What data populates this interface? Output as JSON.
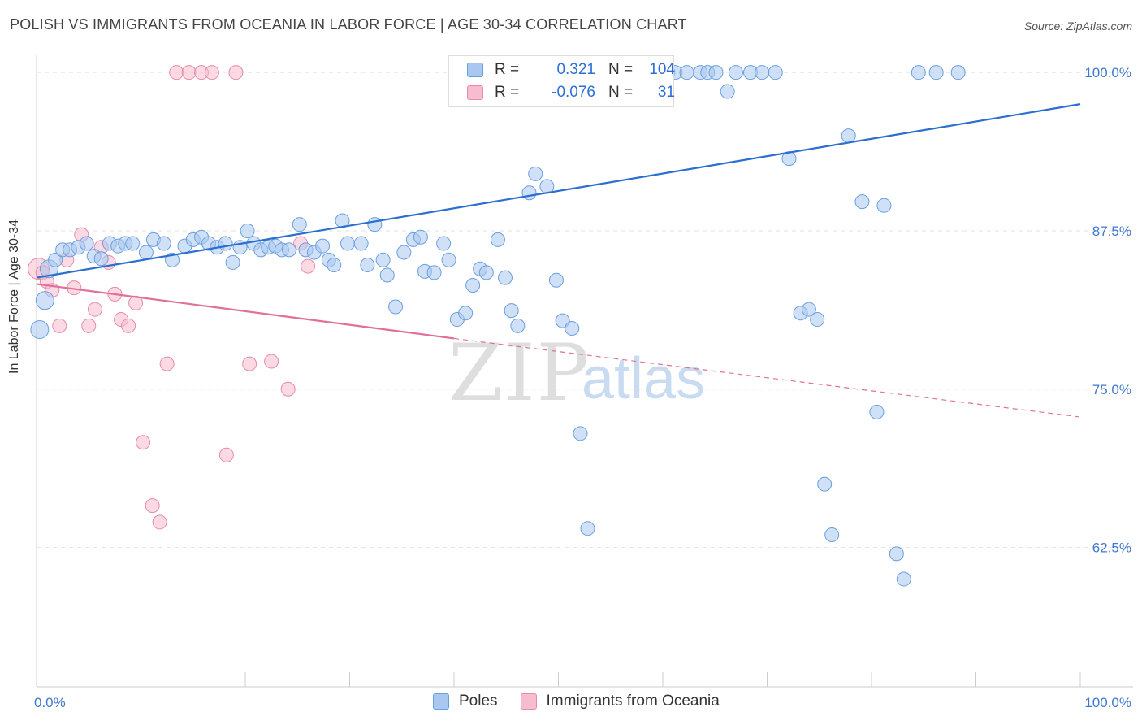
{
  "title": "POLISH VS IMMIGRANTS FROM OCEANIA IN LABOR FORCE | AGE 30-34 CORRELATION CHART",
  "source": "Source: ZipAtlas.com",
  "watermark": {
    "zip": "ZIP",
    "atlas": "atlas"
  },
  "legend": {
    "r_label": "R =",
    "n_label": "N =",
    "rows": [
      {
        "r": "0.321",
        "n": "104"
      },
      {
        "r": "-0.076",
        "n": "31"
      }
    ]
  },
  "colors": {
    "poles_fill": "#a9c8f0",
    "poles_stroke": "#6a9fe0",
    "poles_line": "#2a6fd0",
    "oceania_fill": "#f7bccd",
    "oceania_stroke": "#e88aa8",
    "oceania_line": "#e0709a",
    "axis_text": "#3f78d0"
  },
  "chart_data": {
    "type": "scatter",
    "title": "POLISH VS IMMIGRANTS FROM OCEANIA IN LABOR FORCE | AGE 30-34 CORRELATION CHART",
    "xlabel": "",
    "ylabel": "In Labor Force | Age 30-34",
    "xlim": [
      0,
      100
    ],
    "ylim": [
      51.5,
      102
    ],
    "x_tick_labels": [
      "0.0%",
      "100.0%"
    ],
    "y_ticks": [
      62.5,
      75.0,
      87.5,
      100.0
    ],
    "y_tick_labels": [
      "62.5%",
      "75.0%",
      "87.5%",
      "100.0%"
    ],
    "grid": true,
    "legend_position": "bottom",
    "series": [
      {
        "name": "Poles",
        "r": 0.321,
        "n": 104,
        "trend": {
          "x0": 0,
          "y0": 83.8,
          "x1": 100,
          "y1": 97.5
        },
        "points": [
          [
            0.3,
            79.7
          ],
          [
            0.8,
            82.0
          ],
          [
            1.2,
            84.5
          ],
          [
            1.8,
            85.2
          ],
          [
            2.5,
            86.0
          ],
          [
            3.2,
            86.0
          ],
          [
            4.0,
            86.2
          ],
          [
            4.8,
            86.5
          ],
          [
            5.5,
            85.5
          ],
          [
            6.2,
            85.3
          ],
          [
            7.0,
            86.5
          ],
          [
            7.8,
            86.3
          ],
          [
            8.5,
            86.5
          ],
          [
            9.2,
            86.5
          ],
          [
            10.5,
            85.8
          ],
          [
            11.2,
            86.8
          ],
          [
            12.2,
            86.5
          ],
          [
            13.0,
            85.2
          ],
          [
            14.2,
            86.3
          ],
          [
            15.0,
            86.8
          ],
          [
            15.8,
            87.0
          ],
          [
            16.5,
            86.5
          ],
          [
            17.3,
            86.2
          ],
          [
            18.1,
            86.5
          ],
          [
            18.8,
            85.0
          ],
          [
            19.5,
            86.2
          ],
          [
            20.2,
            87.5
          ],
          [
            20.8,
            86.5
          ],
          [
            21.5,
            86.0
          ],
          [
            22.2,
            86.2
          ],
          [
            22.9,
            86.3
          ],
          [
            23.5,
            86.0
          ],
          [
            24.2,
            86.0
          ],
          [
            25.2,
            88.0
          ],
          [
            25.8,
            86.0
          ],
          [
            26.6,
            85.8
          ],
          [
            27.4,
            86.3
          ],
          [
            28.0,
            85.2
          ],
          [
            28.5,
            84.8
          ],
          [
            29.3,
            88.3
          ],
          [
            29.8,
            86.5
          ],
          [
            31.1,
            86.5
          ],
          [
            31.7,
            84.8
          ],
          [
            32.4,
            88.0
          ],
          [
            33.2,
            85.2
          ],
          [
            33.6,
            84.0
          ],
          [
            34.4,
            81.5
          ],
          [
            35.2,
            85.8
          ],
          [
            36.1,
            86.8
          ],
          [
            36.8,
            87.0
          ],
          [
            37.2,
            84.3
          ],
          [
            38.1,
            84.2
          ],
          [
            39.0,
            86.5
          ],
          [
            39.5,
            85.2
          ],
          [
            40.3,
            80.5
          ],
          [
            41.1,
            81.0
          ],
          [
            41.8,
            83.2
          ],
          [
            42.5,
            84.5
          ],
          [
            43.1,
            84.2
          ],
          [
            44.2,
            86.8
          ],
          [
            44.9,
            83.8
          ],
          [
            45.5,
            81.2
          ],
          [
            46.1,
            80.0
          ],
          [
            47.2,
            90.5
          ],
          [
            47.8,
            92.0
          ],
          [
            48.9,
            91.0
          ],
          [
            49.8,
            83.6
          ],
          [
            50.4,
            80.4
          ],
          [
            51.3,
            79.8
          ],
          [
            52.1,
            71.5
          ],
          [
            52.8,
            64.0
          ],
          [
            53.3,
            99.8
          ],
          [
            53.9,
            100.0
          ],
          [
            54.8,
            100.0
          ],
          [
            55.5,
            100.0
          ],
          [
            56.8,
            100.0
          ],
          [
            58.1,
            100.0
          ],
          [
            59.3,
            100.0
          ],
          [
            60.5,
            100.0
          ],
          [
            61.2,
            100.0
          ],
          [
            62.3,
            100.0
          ],
          [
            63.6,
            100.0
          ],
          [
            64.3,
            100.0
          ],
          [
            65.1,
            100.0
          ],
          [
            66.2,
            98.5
          ],
          [
            67.0,
            100.0
          ],
          [
            68.4,
            100.0
          ],
          [
            69.5,
            100.0
          ],
          [
            70.8,
            100.0
          ],
          [
            72.1,
            93.2
          ],
          [
            73.2,
            81.0
          ],
          [
            74.0,
            81.3
          ],
          [
            74.8,
            80.5
          ],
          [
            75.5,
            67.5
          ],
          [
            76.2,
            63.5
          ],
          [
            77.8,
            95.0
          ],
          [
            79.1,
            89.8
          ],
          [
            80.5,
            73.2
          ],
          [
            81.2,
            89.5
          ],
          [
            82.4,
            62.0
          ],
          [
            83.1,
            60.0
          ],
          [
            84.5,
            100.0
          ],
          [
            86.2,
            100.0
          ],
          [
            88.3,
            100.0
          ]
        ]
      },
      {
        "name": "Immigrants from Oceania",
        "r": -0.076,
        "n": 31,
        "trend": {
          "x0": 0,
          "y0": 83.3,
          "x1": 40,
          "y1": 79.0,
          "dash_x1": 100,
          "dash_y1": 72.8
        },
        "points": [
          [
            0.2,
            84.5
          ],
          [
            0.6,
            84.2
          ],
          [
            1.0,
            83.5
          ],
          [
            1.5,
            82.8
          ],
          [
            2.2,
            80.0
          ],
          [
            2.9,
            85.2
          ],
          [
            3.6,
            83.0
          ],
          [
            4.3,
            87.2
          ],
          [
            5.0,
            80.0
          ],
          [
            5.6,
            81.3
          ],
          [
            6.2,
            86.2
          ],
          [
            6.9,
            85.0
          ],
          [
            7.5,
            82.5
          ],
          [
            8.1,
            80.5
          ],
          [
            8.8,
            80.0
          ],
          [
            9.5,
            81.8
          ],
          [
            10.2,
            70.8
          ],
          [
            11.1,
            65.8
          ],
          [
            11.8,
            64.5
          ],
          [
            12.5,
            77.0
          ],
          [
            13.4,
            100.0
          ],
          [
            14.6,
            100.0
          ],
          [
            15.8,
            100.0
          ],
          [
            16.8,
            100.0
          ],
          [
            18.2,
            69.8
          ],
          [
            19.1,
            100.0
          ],
          [
            20.4,
            77.0
          ],
          [
            22.5,
            77.2
          ],
          [
            24.1,
            75.0
          ],
          [
            25.3,
            86.5
          ],
          [
            26.0,
            84.7
          ]
        ]
      }
    ]
  }
}
